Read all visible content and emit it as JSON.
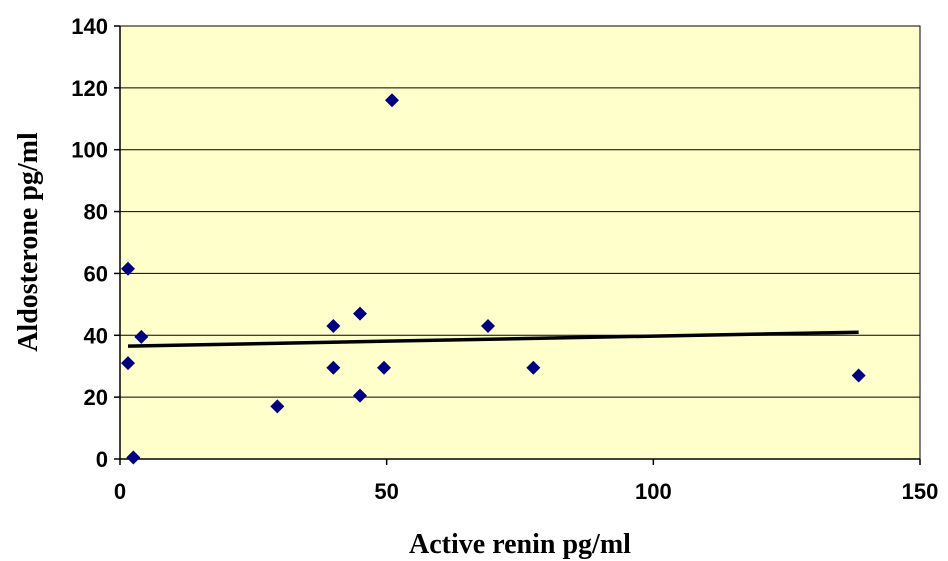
{
  "chart_data": {
    "type": "scatter",
    "title": "",
    "xlabel": "Active renin pg/ml",
    "ylabel": "Aldosterone pg/ml",
    "xlim": [
      0,
      150
    ],
    "ylim": [
      0,
      140
    ],
    "x_ticks": [
      0,
      50,
      100,
      150
    ],
    "y_ticks": [
      0,
      20,
      40,
      60,
      80,
      100,
      120,
      140
    ],
    "x_tick_labels": [
      "0",
      "50",
      "100",
      "150"
    ],
    "y_tick_labels": [
      "0",
      "20",
      "40",
      "60",
      "80",
      "100",
      "120",
      "140"
    ],
    "grid": "horizontal",
    "legend": "none",
    "colors": {
      "plot_background": "#FFFFCC",
      "marker": "#000080",
      "trendline": "#000000",
      "gridline": "#000000"
    },
    "series": [
      {
        "marker": "diamond",
        "points": [
          {
            "x": 1.5,
            "y": 61.5
          },
          {
            "x": 1.5,
            "y": 31
          },
          {
            "x": 2.5,
            "y": 0.5
          },
          {
            "x": 4,
            "y": 39.5
          },
          {
            "x": 29.5,
            "y": 17
          },
          {
            "x": 40,
            "y": 43
          },
          {
            "x": 40,
            "y": 29.5
          },
          {
            "x": 45,
            "y": 47
          },
          {
            "x": 45,
            "y": 20.5
          },
          {
            "x": 49.5,
            "y": 29.5
          },
          {
            "x": 51,
            "y": 116
          },
          {
            "x": 69,
            "y": 43
          },
          {
            "x": 77.5,
            "y": 29.5
          },
          {
            "x": 138.5,
            "y": 27
          }
        ]
      }
    ],
    "trendline": {
      "x1": 1.5,
      "y1": 36.5,
      "x2": 138.5,
      "y2": 41
    }
  }
}
